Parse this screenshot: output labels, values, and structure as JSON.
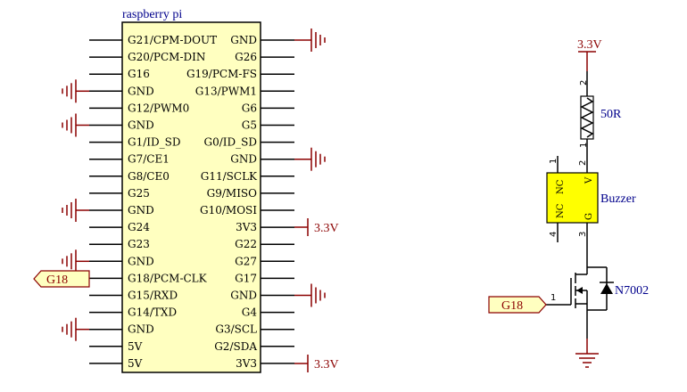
{
  "chip": {
    "title": "raspberry pi",
    "left_pins": [
      "G21/CPM-DOUT",
      "G20/PCM-DIN",
      "G16",
      "GND",
      "G12/PWM0",
      "GND",
      "G1/ID_SD",
      "G7/CE1",
      "G8/CE0",
      "G25",
      "GND",
      "G24",
      "G23",
      "GND",
      "G18/PCM-CLK",
      "G15/RXD",
      "G14/TXD",
      "GND",
      "5V",
      "5V"
    ],
    "right_pins": [
      "GND",
      "G26",
      "G19/PCM-FS",
      "G13/PWM1",
      "G6",
      "G5",
      "G0/ID_SD",
      "GND",
      "G11/SCLK",
      "G9/MISO",
      "G10/MOSI",
      "3V3",
      "G22",
      "G27",
      "G17",
      "GND",
      "G4",
      "G3/SCL",
      "G2/SDA",
      "3V3"
    ]
  },
  "labels": {
    "v33_a": "3.3V",
    "v33_b": "3.3V",
    "v33_top": "3.3V",
    "g18_left": "G18",
    "g18_right": "G18",
    "resistor": "50R",
    "buzzer": "Buzzer",
    "transistor": "N7002"
  },
  "buzzer_pins": {
    "nc1": "NC",
    "nc2": "NC",
    "v": "V",
    "g": "G"
  },
  "pin_numbers": {
    "r_top": "2",
    "r_bot": "1",
    "bz_top_left": "1",
    "bz_top_right": "2",
    "bz_bot_left": "4",
    "bz_bot_right": "3",
    "gate": "1"
  },
  "colors": {
    "chip_fill": "#ffffc0",
    "wire_red": "#8b0000",
    "text_blue": "#00008b",
    "label_fill": "#ffffc0",
    "buzzer_fill": "#ffff00"
  }
}
